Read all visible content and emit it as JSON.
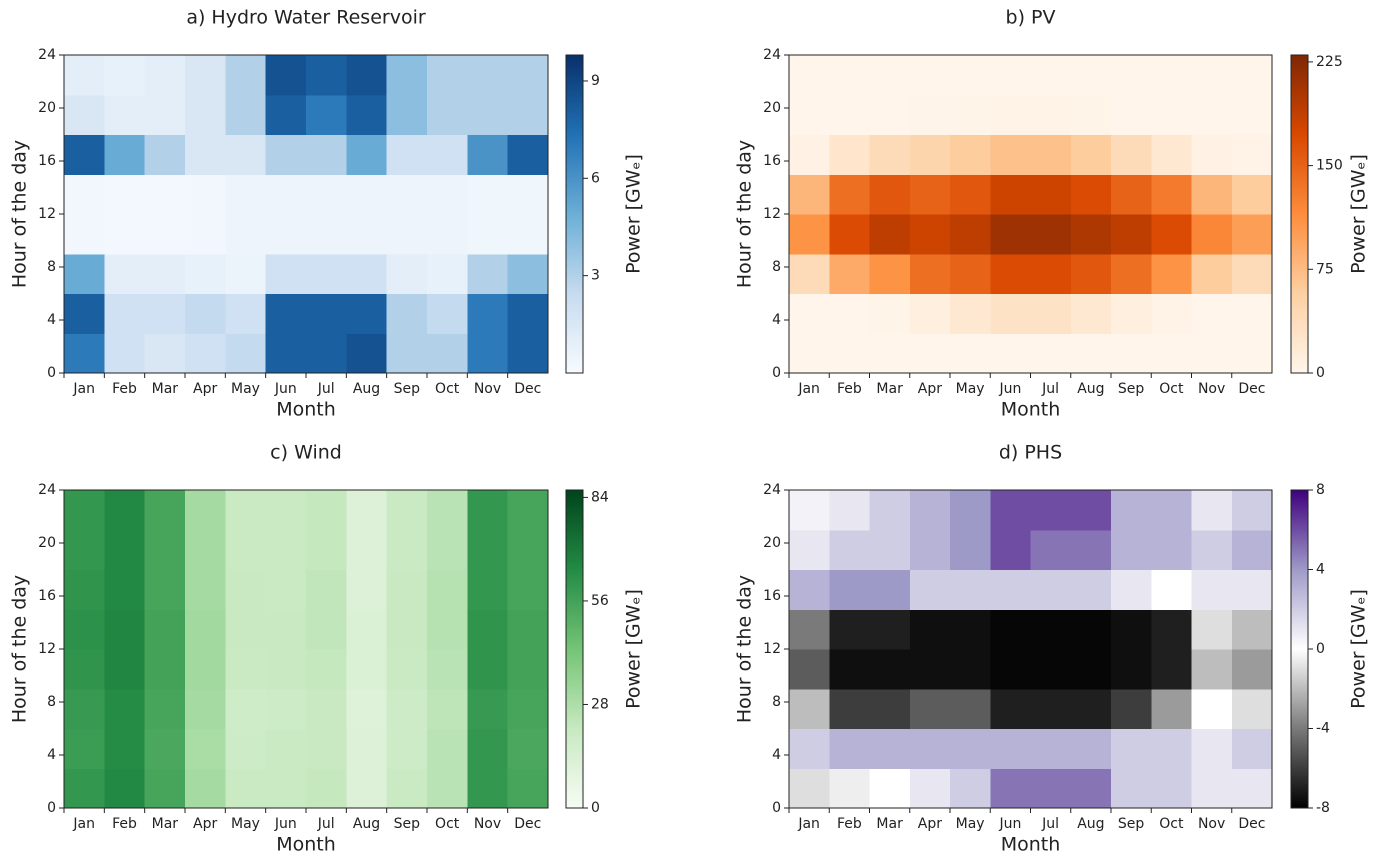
{
  "chart_data": [
    {
      "type": "heatmap",
      "title": "a) Hydro Water Reservoir",
      "xlabel": "Month",
      "ylabel": "Hour of the day",
      "categories": [
        "Jan",
        "Feb",
        "Mar",
        "Apr",
        "May",
        "Jun",
        "Jul",
        "Aug",
        "Sep",
        "Oct",
        "Nov",
        "Dec"
      ],
      "ylim": [
        0,
        24
      ],
      "yticks": [
        0,
        4,
        8,
        12,
        16,
        20,
        24
      ],
      "y_bins": [
        0,
        3,
        6,
        9,
        12,
        15,
        18,
        21,
        24
      ],
      "values": [
        [
          7,
          2,
          1.5,
          2,
          2.5,
          8,
          8,
          8.5,
          3,
          3,
          7,
          8
        ],
        [
          8,
          2,
          2,
          2.5,
          2,
          8,
          8,
          8,
          3,
          2.5,
          7,
          8
        ],
        [
          5,
          1,
          1,
          0.8,
          0.6,
          2,
          2,
          2,
          1,
          0.8,
          3,
          4
        ],
        [
          0.3,
          0.2,
          0.2,
          0.3,
          0.5,
          0.5,
          0.5,
          0.5,
          0.5,
          0.5,
          0.4,
          0.4
        ],
        [
          0.3,
          0.2,
          0.2,
          0.3,
          0.5,
          0.5,
          0.5,
          0.5,
          0.5,
          0.5,
          0.4,
          0.4
        ],
        [
          8,
          5,
          3,
          1.5,
          1.5,
          3,
          3,
          5,
          2,
          2,
          6,
          8
        ],
        [
          1.5,
          1,
          1,
          1.5,
          3,
          8,
          7,
          8,
          4,
          3,
          3,
          3
        ],
        [
          1,
          0.8,
          1,
          1.5,
          3,
          8.5,
          8,
          8.5,
          4,
          3,
          3,
          3
        ]
      ],
      "clim": [
        0,
        9.8
      ],
      "cticks": [
        3,
        6,
        9
      ],
      "colorbar_label": "Power [GWₑ]",
      "colormap": [
        "#f7fbff",
        "#c6dbef",
        "#6baed6",
        "#2171b5",
        "#08306b"
      ]
    },
    {
      "type": "heatmap",
      "title": "b) PV",
      "xlabel": "Month",
      "ylabel": "Hour of the day",
      "categories": [
        "Jan",
        "Feb",
        "Mar",
        "Apr",
        "May",
        "Jun",
        "Jul",
        "Aug",
        "Sep",
        "Oct",
        "Nov",
        "Dec"
      ],
      "ylim": [
        0,
        24
      ],
      "yticks": [
        0,
        4,
        8,
        12,
        16,
        20,
        24
      ],
      "y_bins": [
        0,
        3,
        6,
        9,
        12,
        15,
        18,
        21,
        24
      ],
      "values": [
        [
          0,
          0,
          0,
          0,
          0,
          0,
          0,
          0,
          0,
          0,
          0,
          0
        ],
        [
          0,
          0,
          2,
          10,
          20,
          30,
          30,
          20,
          10,
          3,
          0,
          0
        ],
        [
          40,
          90,
          110,
          140,
          150,
          170,
          170,
          160,
          140,
          110,
          60,
          40
        ],
        [
          110,
          170,
          190,
          180,
          190,
          210,
          210,
          200,
          190,
          170,
          120,
          100
        ],
        [
          80,
          140,
          160,
          150,
          160,
          180,
          180,
          170,
          150,
          130,
          80,
          60
        ],
        [
          5,
          25,
          40,
          50,
          60,
          70,
          70,
          60,
          40,
          20,
          5,
          3
        ],
        [
          0,
          0,
          0,
          1,
          2,
          3,
          3,
          2,
          0,
          0,
          0,
          0
        ],
        [
          0,
          0,
          0,
          0,
          0,
          0,
          0,
          0,
          0,
          0,
          0,
          0
        ]
      ],
      "clim": [
        0,
        230
      ],
      "cticks": [
        0,
        75,
        150,
        225
      ],
      "colorbar_label": "Power [GWₑ]",
      "colormap": [
        "#fff5eb",
        "#fdd0a2",
        "#fd8d3c",
        "#d94801",
        "#7f2704"
      ]
    },
    {
      "type": "heatmap",
      "title": "c) Wind",
      "xlabel": "Month",
      "ylabel": "Hour of the day",
      "categories": [
        "Jan",
        "Feb",
        "Mar",
        "Apr",
        "May",
        "Jun",
        "Jul",
        "Aug",
        "Sep",
        "Oct",
        "Nov",
        "Dec"
      ],
      "ylim": [
        0,
        24
      ],
      "yticks": [
        0,
        4,
        8,
        12,
        16,
        20,
        24
      ],
      "y_bins": [
        0,
        3,
        6,
        9,
        12,
        15,
        18,
        21,
        24
      ],
      "values": [
        [
          60,
          65,
          55,
          30,
          20,
          20,
          22,
          12,
          20,
          25,
          60,
          55
        ],
        [
          58,
          64,
          54,
          29,
          19,
          20,
          21,
          12,
          19,
          25,
          60,
          54
        ],
        [
          59,
          64,
          55,
          30,
          18,
          19,
          21,
          11,
          19,
          24,
          59,
          55
        ],
        [
          61,
          66,
          56,
          31,
          20,
          21,
          22,
          13,
          20,
          25,
          61,
          56
        ],
        [
          62,
          66,
          56,
          31,
          21,
          21,
          23,
          13,
          21,
          26,
          61,
          56
        ],
        [
          61,
          65,
          55,
          30,
          21,
          20,
          23,
          12,
          21,
          26,
          60,
          55
        ],
        [
          60,
          65,
          55,
          30,
          20,
          20,
          22,
          12,
          20,
          25,
          60,
          55
        ],
        [
          60,
          65,
          55,
          30,
          20,
          20,
          22,
          12,
          20,
          25,
          60,
          55
        ]
      ],
      "clim": [
        0,
        86
      ],
      "cticks": [
        0,
        28,
        56,
        84
      ],
      "colorbar_label": "Power [GWₑ]",
      "colormap": [
        "#f7fcf5",
        "#c7e9c0",
        "#74c476",
        "#238b45",
        "#00441b"
      ]
    },
    {
      "type": "heatmap",
      "title": "d) PHS",
      "xlabel": "Month",
      "ylabel": "Hour of the day",
      "categories": [
        "Jan",
        "Feb",
        "Mar",
        "Apr",
        "May",
        "Jun",
        "Jul",
        "Aug",
        "Sep",
        "Oct",
        "Nov",
        "Dec"
      ],
      "ylim": [
        0,
        24
      ],
      "yticks": [
        0,
        4,
        8,
        12,
        16,
        20,
        24
      ],
      "y_bins": [
        0,
        3,
        6,
        9,
        12,
        15,
        18,
        21,
        24
      ],
      "values": [
        [
          -1,
          -0.5,
          0,
          1,
          2,
          5,
          5,
          5,
          2,
          2,
          1,
          1
        ],
        [
          2,
          3,
          3,
          3,
          3,
          3,
          3,
          3,
          2,
          2,
          1,
          2
        ],
        [
          -2,
          -6,
          -6,
          -5,
          -5,
          -7,
          -7,
          -7,
          -6,
          -3,
          0,
          -1
        ],
        [
          -5,
          -7.5,
          -7.5,
          -7.5,
          -7.5,
          -7.8,
          -7.8,
          -7.8,
          -7.5,
          -7,
          -2,
          -3
        ],
        [
          -4,
          -7,
          -7,
          -7.5,
          -7.5,
          -7.8,
          -7.8,
          -7.8,
          -7.5,
          -7,
          -1,
          -2
        ],
        [
          3,
          4,
          4,
          2,
          2,
          2,
          2,
          2,
          1,
          0,
          1,
          1
        ],
        [
          1,
          2,
          2,
          3,
          4,
          6,
          5,
          5,
          3,
          3,
          2,
          3
        ],
        [
          0.5,
          1,
          2,
          3,
          4,
          6,
          6,
          6,
          3,
          3,
          1,
          2
        ]
      ],
      "clim": [
        -8,
        8
      ],
      "cticks": [
        -8,
        -4,
        0,
        4,
        8
      ],
      "colorbar_label": "Power [GWₑ]",
      "colormap": [
        "#000000",
        "#7a7a7a",
        "#ffffff",
        "#9e9ac8",
        "#3f007d"
      ]
    }
  ]
}
